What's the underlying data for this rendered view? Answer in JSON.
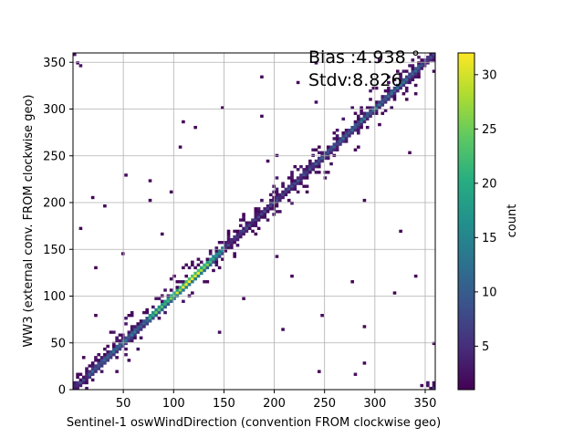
{
  "chart_data": {
    "type": "heatmap",
    "title": "",
    "xlabel": "Sentinel-1 oswWindDirection (convention FROM clockwise geo)",
    "ylabel": "WW3 (external conv. FROM clockwise geo)",
    "xlim": [
      0,
      360
    ],
    "ylim": [
      0,
      360
    ],
    "x_ticks": [
      50,
      100,
      150,
      200,
      250,
      300,
      350
    ],
    "y_ticks": [
      0,
      50,
      100,
      150,
      200,
      250,
      300,
      350
    ],
    "grid": true,
    "bin_size_deg": 3,
    "colormap": "viridis",
    "colorbar": {
      "label": "count",
      "min": 1,
      "max": 32,
      "ticks": [
        5,
        10,
        15,
        20,
        25,
        30
      ]
    },
    "annotations": {
      "bias_text": "Bias :4.938 °",
      "stdv_text": "Stdv:8.826"
    },
    "summary": {
      "relation": "concentrated along the identity line y = x",
      "bias_deg": 4.938,
      "stdv_deg": 8.826,
      "peak_count_near_deg": [
        100,
        135
      ]
    }
  }
}
